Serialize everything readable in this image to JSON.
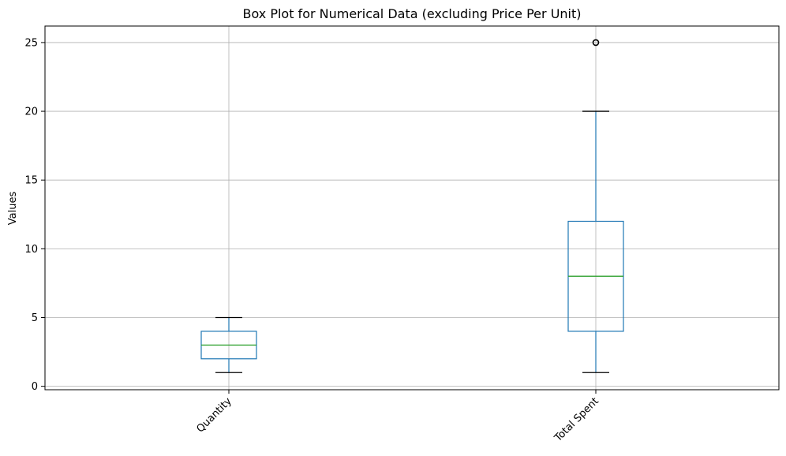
{
  "chart_data": {
    "type": "box",
    "title": "Box Plot for Numerical Data (excluding Price Per Unit)",
    "xlabel": "",
    "ylabel": "Values",
    "ylim": [
      -0.25,
      26.2
    ],
    "yticks": [
      0,
      5,
      10,
      15,
      20,
      25
    ],
    "grid": true,
    "x_tick_rotation": 45,
    "categories": [
      "Quantity",
      "Total Spent"
    ],
    "boxes": [
      {
        "label": "Quantity",
        "whisker_low": 1,
        "q1": 2,
        "median": 3,
        "q3": 4,
        "whisker_high": 5,
        "outliers": []
      },
      {
        "label": "Total Spent",
        "whisker_low": 1,
        "q1": 4,
        "median": 8,
        "q3": 12,
        "whisker_high": 20,
        "outliers": [
          25
        ]
      }
    ],
    "colors": {
      "box": "#1f77b4",
      "median": "#2ca02c",
      "whisker_cap": "#000000",
      "outlier": "#000000",
      "grid": "#b0b0b0"
    }
  }
}
